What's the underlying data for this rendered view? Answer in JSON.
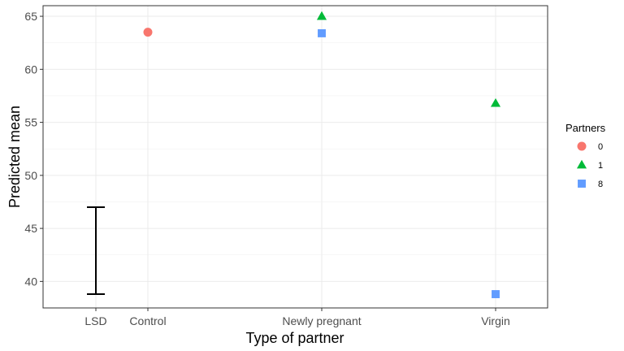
{
  "chart_data": {
    "type": "scatter",
    "xlabel": "Type of partner",
    "ylabel": "Predicted mean",
    "categories": [
      "LSD",
      "Control",
      "Newly pregnant",
      "Virgin"
    ],
    "ylim": [
      37.5,
      66
    ],
    "yticks": [
      40,
      45,
      50,
      55,
      60,
      65
    ],
    "grid": true,
    "legend": {
      "title": "Partners",
      "placement": "right",
      "entries": [
        "0",
        "1",
        "8"
      ]
    },
    "series": [
      {
        "name": "0",
        "shape": "circle",
        "color": "#F8766D",
        "points": [
          {
            "x": "Control",
            "y": 63.5
          }
        ]
      },
      {
        "name": "1",
        "shape": "triangle",
        "color": "#00BA38",
        "points": [
          {
            "x": "Newly pregnant",
            "y": 65.0
          },
          {
            "x": "Virgin",
            "y": 56.8
          }
        ]
      },
      {
        "name": "8",
        "shape": "square",
        "color": "#619CFF",
        "points": [
          {
            "x": "Newly pregnant",
            "y": 63.4
          },
          {
            "x": "Virgin",
            "y": 38.8
          }
        ]
      }
    ],
    "error_bar": {
      "x": "LSD",
      "ymin": 38.8,
      "ymax": 47.0,
      "color": "#000000"
    }
  }
}
